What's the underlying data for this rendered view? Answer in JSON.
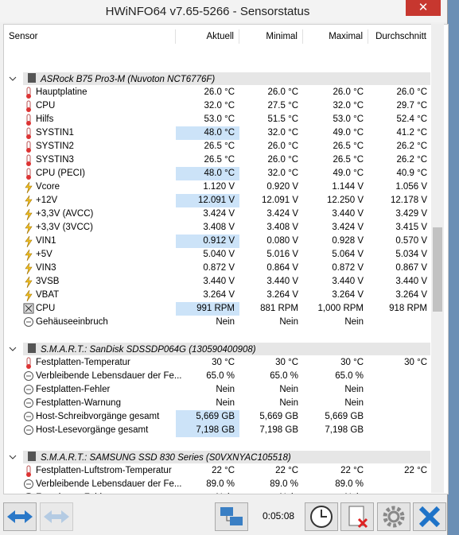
{
  "window": {
    "title": "HWiNFO64 v7.65-5266 - Sensorstatus",
    "close": "✕"
  },
  "columns": [
    "Sensor",
    "Aktuell",
    "Minimal",
    "Maximal",
    "Durchschnitt"
  ],
  "groups": [
    {
      "name": "ASRock B75 Pro3-M (Nuvoton NCT6776F)",
      "rows": [
        {
          "icon": "temp",
          "label": "Hauptplatine",
          "cells": [
            "26.0 °C",
            "26.0 °C",
            "26.0 °C",
            "26.0 °C"
          ],
          "highlight": false
        },
        {
          "icon": "temp",
          "label": "CPU",
          "cells": [
            "32.0 °C",
            "27.5 °C",
            "32.0 °C",
            "29.7 °C"
          ],
          "highlight": false
        },
        {
          "icon": "temp",
          "label": "Hilfs",
          "cells": [
            "53.0 °C",
            "51.5 °C",
            "53.0 °C",
            "52.4 °C"
          ],
          "highlight": false
        },
        {
          "icon": "temp",
          "label": "SYSTIN1",
          "cells": [
            "48.0 °C",
            "32.0 °C",
            "49.0 °C",
            "41.2 °C"
          ],
          "highlight": true
        },
        {
          "icon": "temp",
          "label": "SYSTIN2",
          "cells": [
            "26.5 °C",
            "26.0 °C",
            "26.5 °C",
            "26.2 °C"
          ],
          "highlight": false
        },
        {
          "icon": "temp",
          "label": "SYSTIN3",
          "cells": [
            "26.5 °C",
            "26.0 °C",
            "26.5 °C",
            "26.2 °C"
          ],
          "highlight": false
        },
        {
          "icon": "temp",
          "label": "CPU (PECI)",
          "cells": [
            "48.0 °C",
            "32.0 °C",
            "49.0 °C",
            "40.9 °C"
          ],
          "highlight": true
        },
        {
          "icon": "volt",
          "label": "Vcore",
          "cells": [
            "1.120 V",
            "0.920 V",
            "1.144 V",
            "1.056 V"
          ],
          "highlight": false
        },
        {
          "icon": "volt",
          "label": "+12V",
          "cells": [
            "12.091 V",
            "12.091 V",
            "12.250 V",
            "12.178 V"
          ],
          "highlight": true
        },
        {
          "icon": "volt",
          "label": "+3,3V (AVCC)",
          "cells": [
            "3.424 V",
            "3.424 V",
            "3.440 V",
            "3.429 V"
          ],
          "highlight": false
        },
        {
          "icon": "volt",
          "label": "+3,3V (3VCC)",
          "cells": [
            "3.408 V",
            "3.408 V",
            "3.424 V",
            "3.415 V"
          ],
          "highlight": false
        },
        {
          "icon": "volt",
          "label": "VIN1",
          "cells": [
            "0.912 V",
            "0.080 V",
            "0.928 V",
            "0.570 V"
          ],
          "highlight": true
        },
        {
          "icon": "volt",
          "label": "+5V",
          "cells": [
            "5.040 V",
            "5.016 V",
            "5.064 V",
            "5.034 V"
          ],
          "highlight": false
        },
        {
          "icon": "volt",
          "label": "VIN3",
          "cells": [
            "0.872 V",
            "0.864 V",
            "0.872 V",
            "0.867 V"
          ],
          "highlight": false
        },
        {
          "icon": "volt",
          "label": "3VSB",
          "cells": [
            "3.440 V",
            "3.440 V",
            "3.440 V",
            "3.440 V"
          ],
          "highlight": false
        },
        {
          "icon": "volt",
          "label": "VBAT",
          "cells": [
            "3.264 V",
            "3.264 V",
            "3.264 V",
            "3.264 V"
          ],
          "highlight": false
        },
        {
          "icon": "fan",
          "label": "CPU",
          "cells": [
            "991 RPM",
            "881 RPM",
            "1,000 RPM",
            "918 RPM"
          ],
          "highlight": true
        },
        {
          "icon": "other",
          "label": "Gehäuseeinbruch",
          "cells": [
            "Nein",
            "Nein",
            "Nein",
            null
          ],
          "highlight": false
        }
      ]
    },
    {
      "name": "S.M.A.R.T.: SanDisk SDSSDP064G (130590400908)",
      "rows": [
        {
          "icon": "temp",
          "label": "Festplatten-Temperatur",
          "cells": [
            "30 °C",
            "30 °C",
            "30 °C",
            "30 °C"
          ],
          "highlight": false
        },
        {
          "icon": "other",
          "label": "Verbleibende Lebensdauer der Fe...",
          "cells": [
            "65.0 %",
            "65.0 %",
            "65.0 %",
            null
          ],
          "highlight": false
        },
        {
          "icon": "other",
          "label": "Festplatten-Fehler",
          "cells": [
            "Nein",
            "Nein",
            "Nein",
            null
          ],
          "highlight": false
        },
        {
          "icon": "other",
          "label": "Festplatten-Warnung",
          "cells": [
            "Nein",
            "Nein",
            "Nein",
            null
          ],
          "highlight": false
        },
        {
          "icon": "other",
          "label": "Host-Schreibvorgänge gesamt",
          "cells": [
            "5,669 GB",
            "5,669 GB",
            "5,669 GB",
            null
          ],
          "highlight": true
        },
        {
          "icon": "other",
          "label": "Host-Lesevorgänge gesamt",
          "cells": [
            "7,198 GB",
            "7,198 GB",
            "7,198 GB",
            null
          ],
          "highlight": true
        }
      ]
    },
    {
      "name": "S.M.A.R.T.: SAMSUNG SSD 830 Series (S0VXNYAC105518)",
      "rows": [
        {
          "icon": "temp",
          "label": "Festplatten-Luftstrom-Temperatur",
          "cells": [
            "22 °C",
            "22 °C",
            "22 °C",
            "22 °C"
          ],
          "highlight": false
        },
        {
          "icon": "other",
          "label": "Verbleibende Lebensdauer der Fe...",
          "cells": [
            "89.0 %",
            "89.0 %",
            "89.0 %",
            null
          ],
          "highlight": false
        },
        {
          "icon": "other",
          "label": "Festplatten-Fehler",
          "cells": [
            "Nein",
            "Nein",
            "Nein",
            null
          ],
          "highlight": false
        }
      ]
    }
  ],
  "toolbar": {
    "timer": "0:05:08"
  }
}
